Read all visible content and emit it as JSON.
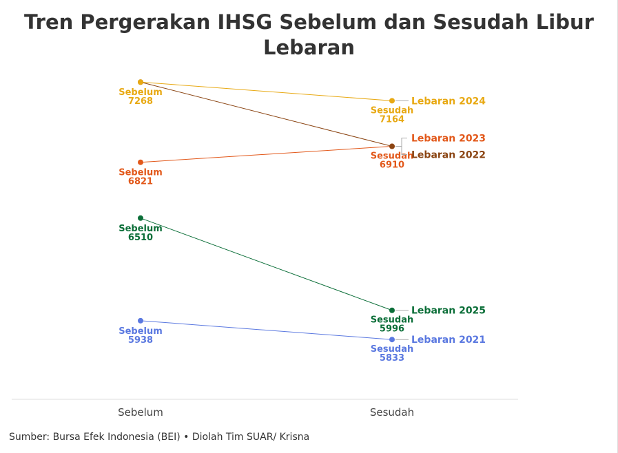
{
  "chart_data": {
    "type": "line",
    "subtype": "slope",
    "title": "Tren Pergerakan IHSG Sebelum dan Sesudah Libur Lebaran",
    "categories": [
      "Sebelum",
      "Sesudah"
    ],
    "ylim": [
      5500,
      7300
    ],
    "series": [
      {
        "name": "Lebaran 2024",
        "values": [
          7268,
          7164
        ],
        "color": "#e8a913",
        "show_start_label": true,
        "show_end_label": true
      },
      {
        "name": "Lebaran 2022",
        "values": [
          7268,
          6910
        ],
        "color": "#8b4513",
        "show_start_label": false,
        "show_end_label": false
      },
      {
        "name": "Lebaran 2023",
        "values": [
          6821,
          6910
        ],
        "color": "#e2581a",
        "show_start_label": true,
        "show_end_label": true
      },
      {
        "name": "Lebaran 2025",
        "values": [
          6510,
          5996
        ],
        "color": "#0b6e38",
        "show_start_label": true,
        "show_end_label": true
      },
      {
        "name": "Lebaran 2021",
        "values": [
          5938,
          5833
        ],
        "color": "#5a78e0",
        "show_start_label": true,
        "show_end_label": true
      }
    ],
    "grid": false,
    "legend": "right-labels"
  },
  "source": "Sumber: Bursa Efek Indonesia (BEI) • Diolah Tim SUAR/ Krisna"
}
